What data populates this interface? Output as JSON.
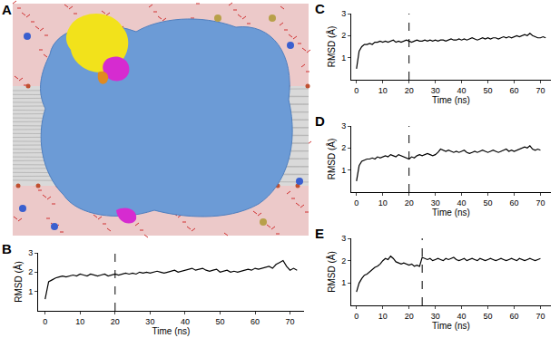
{
  "image_panel": {
    "panel": "A"
  },
  "chart_data": [
    {
      "panel": "B",
      "type": "line",
      "xlabel": "Time (ns)",
      "ylabel": "RMSD (Å)",
      "color": "#000000",
      "line_style": "solid",
      "xlim": [
        -2,
        74
      ],
      "xticks": [
        0,
        10,
        20,
        30,
        40,
        50,
        60,
        70
      ],
      "ylim": [
        0,
        3
      ],
      "yticks": [
        1,
        2,
        3
      ],
      "grid": false,
      "vline": 20,
      "x": [
        0,
        1,
        2,
        3,
        4,
        5,
        6,
        7,
        8,
        9,
        10,
        11,
        12,
        13,
        14,
        15,
        16,
        17,
        18,
        19,
        20,
        21,
        22,
        23,
        24,
        25,
        26,
        27,
        28,
        29,
        30,
        31,
        32,
        33,
        34,
        35,
        36,
        37,
        38,
        39,
        40,
        41,
        42,
        43,
        44,
        45,
        46,
        47,
        48,
        49,
        50,
        51,
        52,
        53,
        54,
        55,
        56,
        57,
        58,
        59,
        60,
        61,
        62,
        63,
        64,
        65,
        66,
        67,
        68,
        69,
        70,
        71,
        72
      ],
      "values": [
        0.6,
        1.5,
        1.6,
        1.7,
        1.75,
        1.8,
        1.75,
        1.8,
        1.85,
        1.8,
        1.9,
        1.85,
        1.8,
        1.9,
        1.85,
        1.8,
        1.85,
        1.9,
        1.8,
        1.85,
        1.9,
        1.85,
        1.9,
        1.95,
        1.9,
        1.95,
        1.9,
        2.0,
        1.95,
        2.0,
        1.95,
        2.0,
        2.05,
        2.0,
        1.95,
        2.0,
        2.05,
        2.1,
        2.0,
        2.05,
        2.1,
        2.15,
        2.2,
        2.1,
        2.15,
        2.2,
        2.1,
        2.05,
        2.1,
        2.15,
        2.0,
        2.05,
        2.1,
        2.0,
        2.05,
        2.0,
        2.05,
        2.1,
        2.15,
        2.1,
        2.2,
        2.15,
        2.2,
        2.25,
        2.3,
        2.2,
        2.4,
        2.5,
        2.6,
        2.3,
        2.1,
        2.2,
        2.1
      ]
    },
    {
      "panel": "C",
      "type": "line",
      "xlabel": "Time (ns)",
      "ylabel": "RMSD (Å)",
      "color": "#000000",
      "line_style": "solid",
      "xlim": [
        -2,
        74
      ],
      "xticks": [
        0,
        10,
        20,
        30,
        40,
        50,
        60,
        70
      ],
      "ylim": [
        0,
        3
      ],
      "yticks": [
        1,
        2,
        3
      ],
      "grid": false,
      "vline": 20,
      "x": [
        0,
        1,
        2,
        3,
        4,
        5,
        6,
        7,
        8,
        9,
        10,
        11,
        12,
        13,
        14,
        15,
        16,
        17,
        18,
        19,
        20,
        21,
        22,
        23,
        24,
        25,
        26,
        27,
        28,
        29,
        30,
        31,
        32,
        33,
        34,
        35,
        36,
        37,
        38,
        39,
        40,
        41,
        42,
        43,
        44,
        45,
        46,
        47,
        48,
        49,
        50,
        51,
        52,
        53,
        54,
        55,
        56,
        57,
        58,
        59,
        60,
        61,
        62,
        63,
        64,
        65,
        66,
        67,
        68,
        69,
        70,
        71,
        72
      ],
      "values": [
        0.5,
        1.3,
        1.5,
        1.6,
        1.6,
        1.65,
        1.6,
        1.7,
        1.7,
        1.75,
        1.7,
        1.75,
        1.7,
        1.75,
        1.8,
        1.7,
        1.75,
        1.7,
        1.75,
        1.8,
        1.75,
        1.7,
        1.75,
        1.8,
        1.75,
        1.75,
        1.8,
        1.75,
        1.8,
        1.75,
        1.8,
        1.75,
        1.8,
        1.8,
        1.75,
        1.8,
        1.85,
        1.8,
        1.8,
        1.85,
        1.8,
        1.85,
        1.8,
        1.85,
        1.9,
        1.85,
        1.8,
        1.85,
        1.9,
        1.85,
        1.9,
        1.85,
        1.9,
        1.9,
        1.85,
        1.9,
        1.95,
        1.9,
        1.95,
        1.9,
        1.95,
        2.0,
        1.95,
        2.0,
        2.05,
        2.0,
        2.1,
        2.0,
        1.95,
        1.9,
        1.9,
        1.95,
        1.9
      ]
    },
    {
      "panel": "D",
      "type": "line",
      "xlabel": "Time (ns)",
      "ylabel": "RMSD (Å)",
      "color": "#000000",
      "line_style": "solid",
      "xlim": [
        -2,
        74
      ],
      "xticks": [
        0,
        10,
        20,
        30,
        40,
        50,
        60,
        70
      ],
      "ylim": [
        0,
        3
      ],
      "yticks": [
        1,
        2,
        3
      ],
      "grid": false,
      "vline": 20,
      "x": [
        0,
        1,
        2,
        3,
        4,
        5,
        6,
        7,
        8,
        9,
        10,
        11,
        12,
        13,
        14,
        15,
        16,
        17,
        18,
        19,
        20,
        21,
        22,
        23,
        24,
        25,
        26,
        27,
        28,
        29,
        30,
        31,
        32,
        33,
        34,
        35,
        36,
        37,
        38,
        39,
        40,
        41,
        42,
        43,
        44,
        45,
        46,
        47,
        48,
        49,
        50,
        51,
        52,
        53,
        54,
        55,
        56,
        57,
        58,
        59,
        60,
        61,
        62,
        63,
        64,
        65,
        66,
        67,
        68,
        69,
        70
      ],
      "values": [
        0.5,
        1.2,
        1.4,
        1.45,
        1.5,
        1.5,
        1.55,
        1.5,
        1.6,
        1.55,
        1.6,
        1.65,
        1.6,
        1.7,
        1.65,
        1.6,
        1.7,
        1.65,
        1.6,
        1.55,
        1.5,
        1.6,
        1.55,
        1.65,
        1.7,
        1.65,
        1.7,
        1.75,
        1.7,
        1.65,
        1.7,
        1.8,
        1.95,
        1.9,
        1.85,
        1.9,
        1.85,
        1.8,
        1.85,
        1.8,
        1.85,
        1.9,
        1.8,
        1.75,
        1.8,
        1.85,
        1.8,
        1.85,
        1.9,
        1.85,
        1.8,
        1.85,
        1.9,
        1.85,
        1.8,
        1.85,
        1.9,
        1.95,
        1.85,
        1.9,
        1.85,
        1.9,
        1.95,
        2.0,
        2.05,
        2.0,
        2.1,
        1.95,
        1.9,
        1.95,
        1.9
      ]
    },
    {
      "panel": "E",
      "type": "line",
      "xlabel": "Time (ns)",
      "ylabel": "RMSD (Å)",
      "color": "#000000",
      "line_style": "solid",
      "xlim": [
        -2,
        74
      ],
      "xticks": [
        0,
        10,
        20,
        30,
        40,
        50,
        60,
        70
      ],
      "ylim": [
        0,
        3
      ],
      "yticks": [
        1,
        2,
        3
      ],
      "grid": false,
      "vline": 25,
      "x": [
        0,
        1,
        2,
        3,
        4,
        5,
        6,
        7,
        8,
        9,
        10,
        11,
        12,
        13,
        14,
        15,
        16,
        17,
        18,
        19,
        20,
        21,
        22,
        23,
        24,
        25,
        26,
        27,
        28,
        29,
        30,
        31,
        32,
        33,
        34,
        35,
        36,
        37,
        38,
        39,
        40,
        41,
        42,
        43,
        44,
        45,
        46,
        47,
        48,
        49,
        50,
        51,
        52,
        53,
        54,
        55,
        56,
        57,
        58,
        59,
        60,
        61,
        62,
        63,
        64,
        65,
        66,
        67,
        68,
        69,
        70
      ],
      "values": [
        0.6,
        1.0,
        1.2,
        1.35,
        1.4,
        1.5,
        1.6,
        1.7,
        1.75,
        1.85,
        2.0,
        2.1,
        2.05,
        2.2,
        2.1,
        1.95,
        1.9,
        1.85,
        1.9,
        1.85,
        1.8,
        1.85,
        1.75,
        1.8,
        1.75,
        2.15,
        2.1,
        2.05,
        2.1,
        2.0,
        2.05,
        2.1,
        2.05,
        2.0,
        2.1,
        2.05,
        2.1,
        2.15,
        2.05,
        2.0,
        2.05,
        2.1,
        2.0,
        2.05,
        2.1,
        2.05,
        2.0,
        2.1,
        2.05,
        2.0,
        2.05,
        2.1,
        2.05,
        2.0,
        2.05,
        2.1,
        2.05,
        2.0,
        2.05,
        2.1,
        2.05,
        2.0,
        2.1,
        2.05,
        2.0,
        2.05,
        2.1,
        2.05,
        2.0,
        2.05,
        2.1
      ]
    }
  ]
}
